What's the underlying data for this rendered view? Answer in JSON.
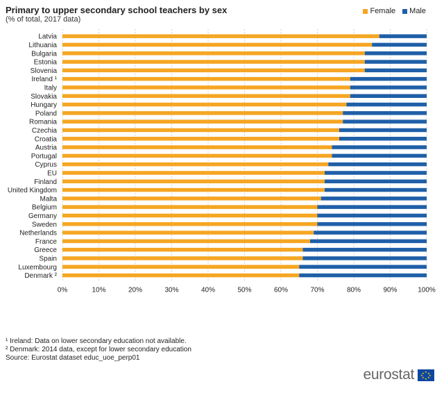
{
  "header": {
    "title": "Primary to upper secondary school teachers by sex",
    "subtitle": "(% of total, 2017 data)"
  },
  "colors": {
    "female": "#f5a623",
    "male": "#1f5fa8",
    "grid": "#d0d0d0"
  },
  "chart_data": {
    "type": "bar",
    "orientation": "horizontal",
    "stacked": true,
    "categories": [
      "Latvia",
      "Lithuania",
      "Bulgaria",
      "Estonia",
      "Slovenia",
      "Ireland ¹",
      "Italy",
      "Slovakia",
      "Hungary",
      "Poland",
      "Romania",
      "Czechia",
      "Croatia",
      "Austria",
      "Portugal",
      "Cyprus",
      "EU",
      "Finland",
      "United Kingdom",
      "Malta",
      "Belgium",
      "Germany",
      "Sweden",
      "Netherlands",
      "France",
      "Greece",
      "Spain",
      "Luxembourg",
      "Denmark ²"
    ],
    "series": [
      {
        "name": "Female",
        "values": [
          87,
          85,
          83,
          83,
          83,
          79,
          79,
          79,
          78,
          77,
          77,
          76,
          76,
          74,
          74,
          73,
          72,
          72,
          72,
          71,
          70,
          70,
          70,
          69,
          68,
          66,
          66,
          65,
          65
        ]
      },
      {
        "name": "Male",
        "values": [
          13,
          15,
          17,
          17,
          17,
          21,
          21,
          21,
          22,
          23,
          23,
          24,
          24,
          26,
          26,
          27,
          28,
          28,
          28,
          29,
          30,
          30,
          30,
          31,
          32,
          34,
          34,
          35,
          35
        ]
      }
    ],
    "xlim": [
      0,
      100
    ],
    "xticks": [
      "0%",
      "10%",
      "20%",
      "30%",
      "40%",
      "50%",
      "60%",
      "70%",
      "80%",
      "90%",
      "100%"
    ],
    "grid": "vertical",
    "legend_position": "top-right"
  },
  "footnotes": [
    "¹ Ireland: Data on lower secondary education not available.",
    "² Denmark: 2014 data, except for lower secondary education",
    "Source: Eurostat dataset educ_uoe_perp01"
  ],
  "logo": {
    "text": "eurostat"
  }
}
